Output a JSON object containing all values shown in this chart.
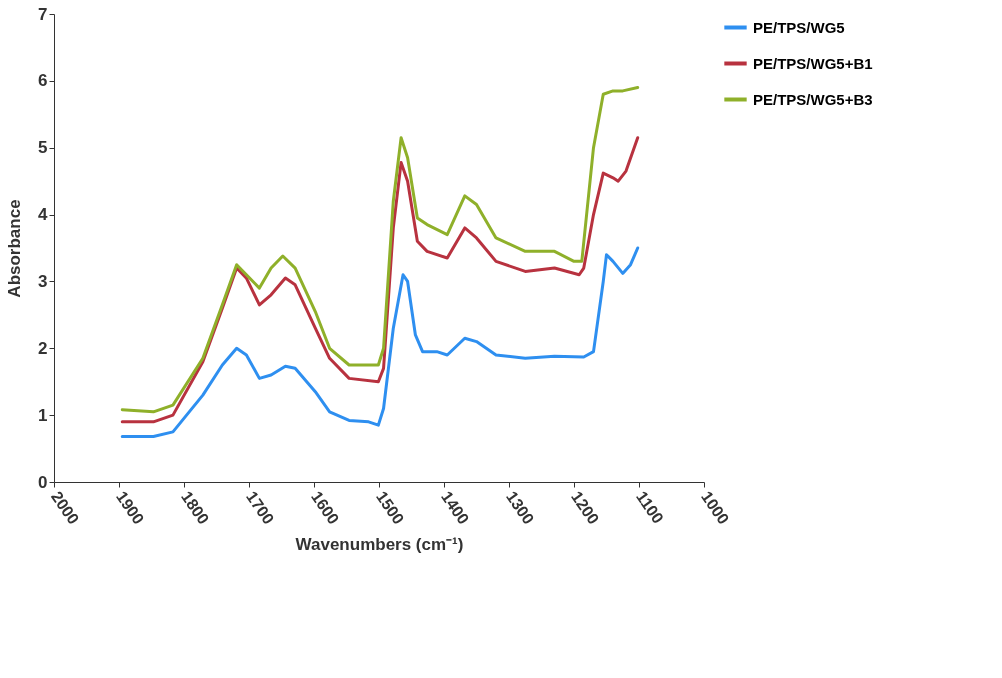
{
  "chart_data": {
    "type": "line",
    "xlabel": "Wavenumbers (cm⁻¹)",
    "ylabel": "Absorbance",
    "xlim": [
      2000,
      1000
    ],
    "xticks": [
      2000,
      1900,
      1800,
      1700,
      1600,
      1500,
      1400,
      1300,
      1200,
      1100,
      1000
    ],
    "ylim": [
      0,
      7
    ],
    "yticks": [
      0,
      1,
      2,
      3,
      4,
      5,
      6,
      7
    ],
    "grid": false,
    "legend": "top right",
    "marker": "none",
    "line_style": "solid",
    "series": [
      {
        "name": "PE/TPS/WG5",
        "color": "#2e8ff0",
        "x": [
          1895,
          1847,
          1817,
          1771,
          1741,
          1719,
          1704,
          1684,
          1666,
          1644,
          1629,
          1598,
          1576,
          1546,
          1516,
          1501,
          1493,
          1478,
          1463,
          1456,
          1444,
          1433,
          1411,
          1395,
          1368,
          1350,
          1320,
          1275,
          1230,
          1185,
          1170,
          1155,
          1150,
          1140,
          1125,
          1113,
          1102
        ],
        "values": [
          0.68,
          0.68,
          0.75,
          1.3,
          1.75,
          2.0,
          1.9,
          1.55,
          1.6,
          1.73,
          1.7,
          1.35,
          1.05,
          0.92,
          0.9,
          0.85,
          1.1,
          2.3,
          3.1,
          3.0,
          2.2,
          1.95,
          1.95,
          1.9,
          2.15,
          2.1,
          1.9,
          1.85,
          1.88,
          1.87,
          1.95,
          3.0,
          3.4,
          3.3,
          3.12,
          3.25,
          3.5
        ]
      },
      {
        "name": "PE/TPS/WG5+B1",
        "color": "#b8323f",
        "x": [
          1895,
          1847,
          1817,
          1771,
          1741,
          1719,
          1704,
          1684,
          1666,
          1644,
          1629,
          1598,
          1576,
          1546,
          1501,
          1493,
          1478,
          1466,
          1456,
          1441,
          1426,
          1395,
          1368,
          1350,
          1320,
          1275,
          1230,
          1192,
          1185,
          1170,
          1155,
          1140,
          1132,
          1120,
          1102
        ],
        "values": [
          0.9,
          0.9,
          1.0,
          1.8,
          2.6,
          3.2,
          3.05,
          2.65,
          2.8,
          3.05,
          2.95,
          2.3,
          1.85,
          1.55,
          1.5,
          1.7,
          3.8,
          4.78,
          4.5,
          3.6,
          3.45,
          3.35,
          3.8,
          3.65,
          3.3,
          3.15,
          3.2,
          3.1,
          3.2,
          4.0,
          4.62,
          4.55,
          4.5,
          4.65,
          5.15
        ]
      },
      {
        "name": "PE/TPS/WG5+B3",
        "color": "#8fb02a",
        "x": [
          1895,
          1847,
          1817,
          1771,
          1741,
          1719,
          1704,
          1684,
          1666,
          1648,
          1629,
          1598,
          1576,
          1546,
          1501,
          1493,
          1478,
          1466,
          1456,
          1441,
          1426,
          1395,
          1368,
          1350,
          1320,
          1275,
          1230,
          1200,
          1188,
          1170,
          1155,
          1140,
          1125,
          1102
        ],
        "values": [
          1.08,
          1.05,
          1.15,
          1.85,
          2.65,
          3.25,
          3.1,
          2.9,
          3.2,
          3.38,
          3.2,
          2.55,
          2.0,
          1.75,
          1.75,
          2.0,
          4.2,
          5.15,
          4.85,
          3.95,
          3.85,
          3.7,
          4.28,
          4.15,
          3.65,
          3.45,
          3.45,
          3.3,
          3.3,
          5.0,
          5.8,
          5.85,
          5.85,
          5.9
        ]
      }
    ]
  }
}
